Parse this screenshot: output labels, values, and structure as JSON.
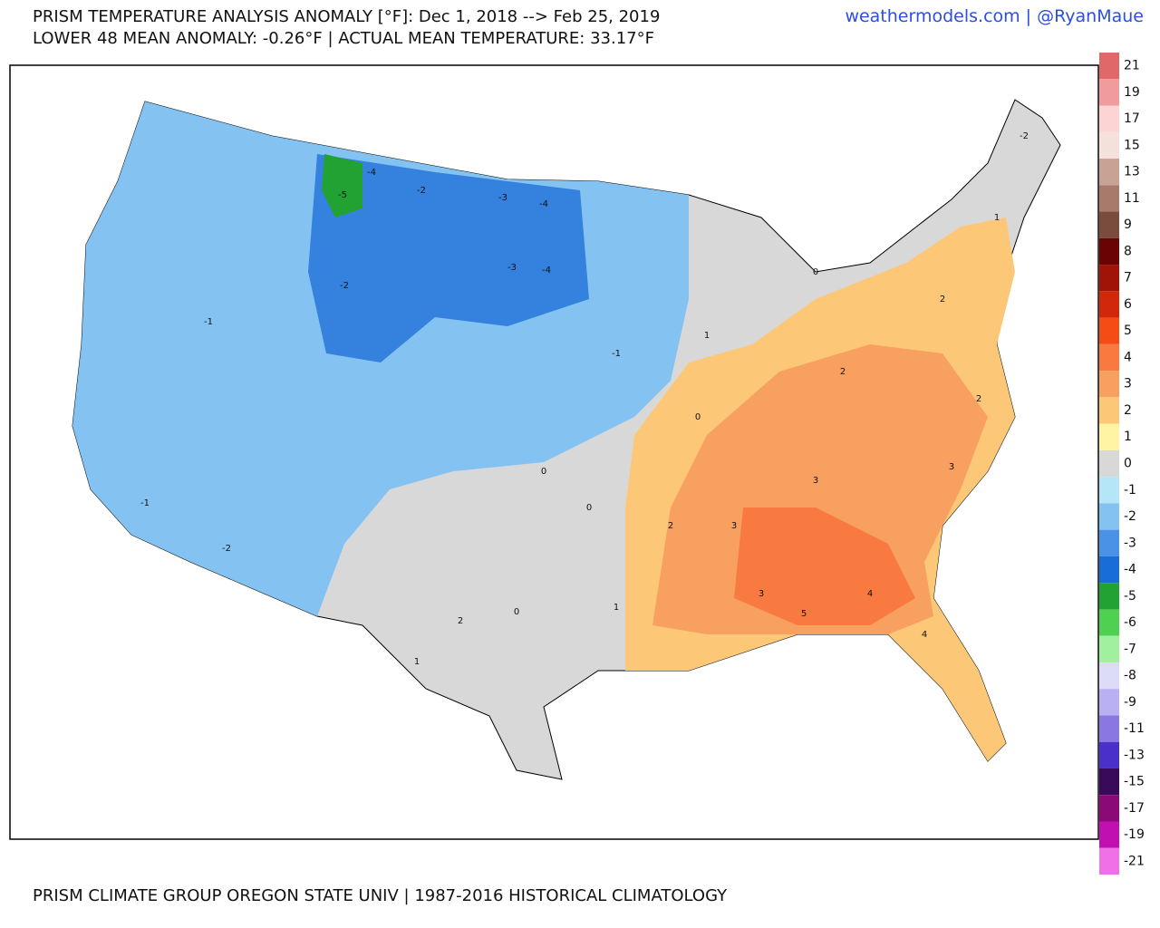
{
  "header": {
    "title": "PRISM TEMPERATURE ANALYSIS ANOMALY [°F]: Dec 1, 2018 --> Feb 25, 2019",
    "subtitle": "LOWER 48 MEAN ANOMALY: -0.26°F | ACTUAL MEAN TEMPERATURE: 33.17°F",
    "credit": "weathermodels.com | @RyanMaue"
  },
  "footer": "PRISM CLIMATE GROUP OREGON STATE UNIV | 1987-2016 HISTORICAL CLIMATOLOGY",
  "legend": {
    "labels": [
      21,
      19,
      17,
      15,
      13,
      11,
      9,
      8,
      7,
      6,
      5,
      4,
      3,
      2,
      1,
      0,
      -1,
      -2,
      -3,
      -4,
      -5,
      -6,
      -7,
      -8,
      -9,
      -11,
      -13,
      -15,
      -17,
      -19,
      -21
    ],
    "colors": [
      "#e06868",
      "#f09c9c",
      "#fcd4d4",
      "#f4e0dc",
      "#c8a294",
      "#a87a6c",
      "#7a4c3e",
      "#6a0404",
      "#a01408",
      "#d02808",
      "#f44c14",
      "#f87a40",
      "#f8a060",
      "#fcc878",
      "#fff4a4",
      "#d8d8d8",
      "#b4e6f8",
      "#84c2f2",
      "#4a92e6",
      "#1a6cd6",
      "#22a232",
      "#50d050",
      "#a0f0a0",
      "#dcdcf8",
      "#b8b0f0",
      "#8a78e0",
      "#4a30c8",
      "#3a0a5a",
      "#8a0a78",
      "#c010b0",
      "#f070e8"
    ]
  },
  "map_labels": [
    -4,
    -5,
    -4,
    -3,
    -3,
    -4,
    -2,
    -2,
    -1,
    -2,
    -1,
    0,
    0,
    1,
    2,
    0,
    1,
    2,
    3,
    3,
    4,
    5,
    4,
    3,
    2,
    2,
    1,
    -2,
    0,
    -1,
    3,
    2,
    1,
    0
  ]
}
